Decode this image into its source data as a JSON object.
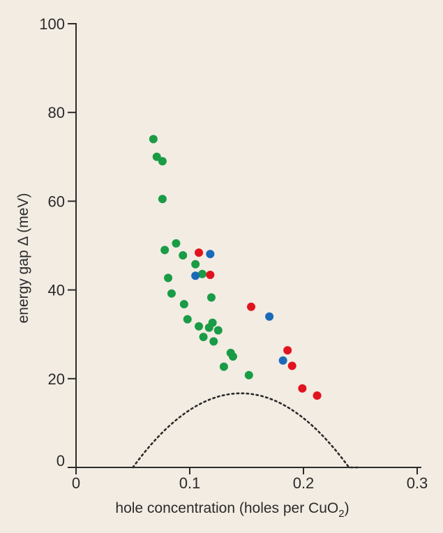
{
  "chart_data": {
    "type": "scatter",
    "title": "",
    "xlabel": "hole concentration (holes per CuO",
    "xlabel_subscript": "2",
    "xlabel_close": ")",
    "ylabel": "energy gap Δ (meV)",
    "xlim": [
      0,
      0.3
    ],
    "ylim": [
      0,
      100
    ],
    "xticks": [
      0,
      0.1,
      0.2,
      0.3
    ],
    "xtick_labels": [
      "0",
      "0.1",
      "0.2",
      "0.3"
    ],
    "yticks": [
      0,
      20,
      40,
      60,
      80,
      100
    ],
    "ytick_labels": [
      "0",
      "20",
      "40",
      "60",
      "80",
      "100"
    ],
    "grid": false,
    "legend": "none",
    "series": [
      {
        "color": "#1a9b46",
        "points": [
          [
            0.068,
            74.0
          ],
          [
            0.071,
            70.0
          ],
          [
            0.076,
            69.0
          ],
          [
            0.076,
            60.5
          ],
          [
            0.078,
            49.0
          ],
          [
            0.081,
            42.7
          ],
          [
            0.084,
            39.2
          ],
          [
            0.088,
            50.5
          ],
          [
            0.094,
            47.8
          ],
          [
            0.095,
            36.8
          ],
          [
            0.098,
            33.4
          ],
          [
            0.105,
            45.8
          ],
          [
            0.108,
            31.8
          ],
          [
            0.111,
            43.6
          ],
          [
            0.112,
            29.4
          ],
          [
            0.117,
            31.5
          ],
          [
            0.119,
            38.3
          ],
          [
            0.12,
            32.6
          ],
          [
            0.121,
            28.4
          ],
          [
            0.125,
            30.9
          ],
          [
            0.13,
            22.7
          ],
          [
            0.136,
            25.8
          ],
          [
            0.138,
            25.0
          ],
          [
            0.152,
            20.8
          ]
        ]
      },
      {
        "color": "#e0141e",
        "points": [
          [
            0.108,
            48.4
          ],
          [
            0.118,
            43.4
          ],
          [
            0.154,
            36.2
          ],
          [
            0.186,
            26.4
          ],
          [
            0.19,
            22.9
          ],
          [
            0.199,
            17.8
          ],
          [
            0.212,
            16.2
          ]
        ]
      },
      {
        "color": "#1a6ab8",
        "points": [
          [
            0.105,
            43.2
          ],
          [
            0.118,
            48.1
          ],
          [
            0.17,
            34.0
          ],
          [
            0.182,
            24.1
          ]
        ]
      }
    ],
    "curve": {
      "style": "dotted",
      "color": "#2b2b2b",
      "description": "parabola",
      "vertex_x": 0.145,
      "vertex_y": 16.7,
      "roots": [
        0.05,
        0.25
      ]
    }
  }
}
